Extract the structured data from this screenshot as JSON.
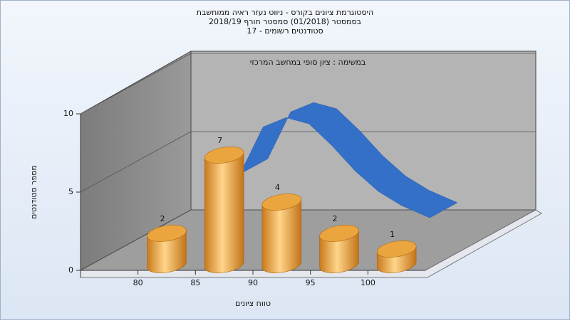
{
  "chart_data": {
    "type": "histogram3d",
    "title": [
      "היסטוגרמת ציונים בקורס - ניווט נעזר ראיה ממוחשבת",
      "בסמסטר  (01/2018)  סמסטר חורף 2018/19",
      "סטודנטים רשומים - 17"
    ],
    "subtitle": "במשימה : ציון סופי במחשב המרכזי",
    "x_label": "טווח ציונים",
    "y_label": "מספר סטודנטים",
    "bins": [
      80,
      85,
      90,
      95,
      100,
      105
    ],
    "values": [
      2,
      7,
      4,
      2,
      1
    ],
    "color": "#e8a23a",
    "curve": {
      "x": [
        86,
        88,
        90,
        92,
        94,
        96,
        98,
        100,
        102.5
      ],
      "values": [
        5.0,
        8.0,
        8.6,
        8.2,
        6.8,
        5.2,
        3.9,
        3.0,
        2.2
      ],
      "color": "#3470c8"
    },
    "xlim": [
      75,
      105
    ],
    "xticks": [
      80,
      85,
      90,
      95,
      100
    ],
    "ylim": [
      0,
      10
    ],
    "yticks": [
      0,
      5,
      10
    ],
    "grid": true
  }
}
